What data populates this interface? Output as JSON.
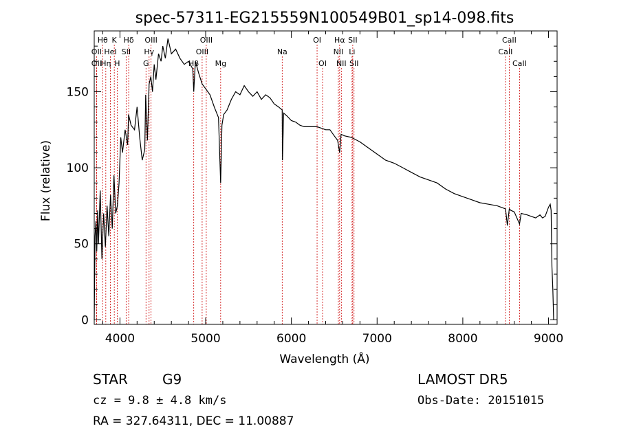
{
  "info": {
    "class": "STAR",
    "subclass": "G9",
    "cz": "cz = 9.8 ± 4.8 km/s",
    "radec": "RA = 327.64311, DEC =  11.00887",
    "survey": "LAMOST DR5",
    "obs_date": "Obs-Date: 20151015"
  },
  "chart_data": {
    "type": "line",
    "title": "spec-57311-EG215559N100549B01_sp14-098.fits",
    "xlabel": "Wavelength (Å)",
    "ylabel": "Flux (relative)",
    "xlim": [
      3700,
      9100
    ],
    "ylim": [
      -3,
      190
    ],
    "xticks": [
      4000,
      5000,
      6000,
      7000,
      8000,
      9000
    ],
    "yticks": [
      0,
      50,
      100,
      150
    ],
    "line_color": "#000000",
    "marker_color": "#cc0000",
    "spectrum": {
      "x": [
        3700,
        3710,
        3720,
        3730,
        3740,
        3750,
        3770,
        3790,
        3810,
        3830,
        3850,
        3870,
        3890,
        3910,
        3930,
        3950,
        3970,
        3990,
        4010,
        4030,
        4060,
        4090,
        4100,
        4130,
        4170,
        4200,
        4230,
        4260,
        4290,
        4300,
        4320,
        4340,
        4360,
        4380,
        4400,
        4420,
        4450,
        4480,
        4500,
        4530,
        4560,
        4600,
        4650,
        4700,
        4750,
        4800,
        4850,
        4861,
        4880,
        4920,
        4960,
        5000,
        5050,
        5100,
        5150,
        5175,
        5190,
        5210,
        5250,
        5300,
        5350,
        5400,
        5450,
        5500,
        5550,
        5600,
        5650,
        5700,
        5750,
        5800,
        5850,
        5893,
        5896,
        5910,
        5950,
        6000,
        6050,
        6100,
        6150,
        6200,
        6250,
        6300,
        6350,
        6400,
        6450,
        6500,
        6540,
        6563,
        6580,
        6620,
        6700,
        6800,
        6900,
        7000,
        7100,
        7200,
        7300,
        7400,
        7500,
        7600,
        7700,
        7800,
        7900,
        8000,
        8100,
        8200,
        8300,
        8400,
        8498,
        8520,
        8542,
        8560,
        8600,
        8662,
        8680,
        8750,
        8800,
        8850,
        8900,
        8930,
        8960,
        9000,
        9020,
        9030,
        9040,
        9050,
        9060
      ],
      "y": [
        0,
        55,
        65,
        45,
        72,
        50,
        85,
        40,
        70,
        48,
        75,
        55,
        82,
        60,
        95,
        70,
        75,
        90,
        120,
        110,
        125,
        115,
        135,
        128,
        125,
        140,
        120,
        105,
        112,
        148,
        118,
        155,
        160,
        150,
        168,
        158,
        175,
        170,
        180,
        172,
        185,
        175,
        178,
        172,
        168,
        170,
        165,
        150,
        170,
        162,
        155,
        152,
        148,
        140,
        133,
        90,
        128,
        135,
        138,
        145,
        150,
        148,
        154,
        150,
        147,
        150,
        145,
        148,
        146,
        142,
        140,
        138,
        105,
        136,
        134,
        131,
        130,
        128,
        127,
        127,
        127,
        127,
        126,
        125,
        125,
        121,
        118,
        110,
        122,
        121,
        120,
        117,
        113,
        109,
        105,
        103,
        100,
        97,
        94,
        92,
        90,
        86,
        83,
        81,
        79,
        77,
        76,
        75,
        73,
        62,
        73,
        72,
        71,
        63,
        70,
        69,
        68,
        67,
        69,
        67,
        68,
        74,
        76,
        72,
        35,
        20,
        0
      ]
    },
    "lines": [
      {
        "name": "Hθ",
        "x": 3798,
        "row": 1
      },
      {
        "name": "OII",
        "x": 3727,
        "row": 2
      },
      {
        "name": "OII",
        "x": 3727,
        "row": 3
      },
      {
        "name": "K",
        "x": 3934,
        "row": 1
      },
      {
        "name": "HeI",
        "x": 3889,
        "row": 2
      },
      {
        "name": "Hη",
        "x": 3835,
        "row": 3
      },
      {
        "name": "H",
        "x": 3968,
        "row": 3
      },
      {
        "name": "Hδ",
        "x": 4102,
        "row": 1
      },
      {
        "name": "SII",
        "x": 4072,
        "row": 2
      },
      {
        "name": "OIII",
        "x": 4363,
        "row": 1
      },
      {
        "name": "Hγ",
        "x": 4340,
        "row": 2
      },
      {
        "name": "G",
        "x": 4304,
        "row": 3
      },
      {
        "name": "OIII",
        "x": 5007,
        "row": 1
      },
      {
        "name": "OIII",
        "x": 4959,
        "row": 2
      },
      {
        "name": "Hβ",
        "x": 4861,
        "row": 3
      },
      {
        "name": "Mg",
        "x": 5175,
        "row": 3
      },
      {
        "name": "Na",
        "x": 5893,
        "row": 2
      },
      {
        "name": "OI",
        "x": 6300,
        "row": 1
      },
      {
        "name": "OI",
        "x": 6364,
        "row": 3
      },
      {
        "name": "Hα",
        "x": 6563,
        "row": 1
      },
      {
        "name": "NII",
        "x": 6548,
        "row": 2
      },
      {
        "name": "NII",
        "x": 6583,
        "row": 3
      },
      {
        "name": "SII",
        "x": 6716,
        "row": 1
      },
      {
        "name": "Li",
        "x": 6708,
        "row": 2
      },
      {
        "name": "SII",
        "x": 6731,
        "row": 3
      },
      {
        "name": "CaII",
        "x": 8542,
        "row": 1
      },
      {
        "name": "CaII",
        "x": 8498,
        "row": 2
      },
      {
        "name": "CaII",
        "x": 8662,
        "row": 3
      }
    ]
  }
}
